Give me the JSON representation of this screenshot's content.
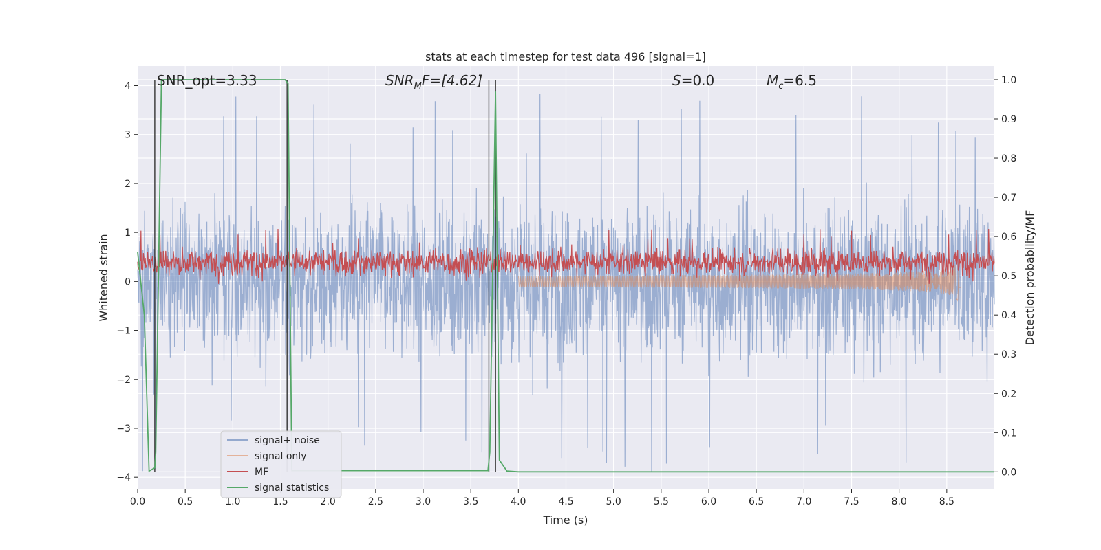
{
  "chart_data": {
    "type": "line",
    "title": "stats at each timestep for test data 496 [signal=1]",
    "xlabel": "Time (s)",
    "ylabel": "Whitened strain",
    "y2label": "Detection probability/MF",
    "xlim": [
      0.0,
      9.0
    ],
    "ylim": [
      -4.25,
      4.4
    ],
    "y2lim": [
      -0.045,
      1.035
    ],
    "xticks": [
      0.0,
      0.5,
      1.0,
      1.5,
      2.0,
      2.5,
      3.0,
      3.5,
      4.0,
      4.5,
      5.0,
      5.5,
      6.0,
      6.5,
      7.0,
      7.5,
      8.0,
      8.5
    ],
    "yticks": [
      -4,
      -3,
      -2,
      -1,
      0,
      1,
      2,
      3,
      4
    ],
    "y2ticks": [
      0.0,
      0.1,
      0.2,
      0.3,
      0.4,
      0.5,
      0.6,
      0.7,
      0.8,
      0.9,
      1.0
    ],
    "ytick_labels": [
      "−4",
      "−3",
      "−2",
      "−1",
      "0",
      "1",
      "2",
      "3",
      "4"
    ],
    "grid": true,
    "legend_position": "lower-left",
    "annotations": [
      {
        "text": "SNR_opt=3.33",
        "x": 0.18,
        "y": 4.1
      },
      {
        "text_main": "SNR",
        "text_sub": "M",
        "text_rest": "F=[4.62]",
        "x": 2.6,
        "y": 4.1
      },
      {
        "text_main": "S",
        "text_sub": "",
        "text_rest": "=0.0",
        "x": 5.6,
        "y": 4.1
      },
      {
        "text_main": "M",
        "text_sub": "c",
        "text_rest": "=6.5",
        "x": 6.6,
        "y": 4.1
      }
    ],
    "series": [
      {
        "name": "signal+ noise",
        "color": "#4c72b0",
        "axis": "left",
        "description_values": "whitened strain noise, amplitude roughly ±2 with peaks to ±4",
        "envelope": {
          "typical": 2.2,
          "max": 4.0
        }
      },
      {
        "name": "signal only",
        "color": "#dd8452",
        "axis": "left",
        "chirp": {
          "start": 4.0,
          "end": 8.65,
          "peak_amp": 0.45
        }
      },
      {
        "name": "MF",
        "color": "#c44e52",
        "axis": "right",
        "band": [
          0.5,
          0.57
        ]
      },
      {
        "name": "signal statistics",
        "color": "#55a868",
        "axis": "right",
        "x": [
          0.0,
          0.07,
          0.12,
          0.18,
          0.19,
          0.25,
          0.3,
          1.5,
          1.55,
          1.58,
          1.62,
          1.65,
          3.5,
          3.68,
          3.7,
          3.76,
          3.8,
          3.88,
          4.0,
          5.0,
          6.0,
          7.0,
          8.0,
          8.5,
          9.0
        ],
        "values": [
          0.56,
          0.4,
          0.002,
          0.01,
          0.05,
          1.0,
          1.0,
          1.0,
          1.0,
          0.99,
          0.003,
          0.003,
          0.003,
          0.003,
          0.05,
          0.97,
          0.03,
          0.002,
          0.0,
          0.0,
          0.0,
          0.0,
          0.0,
          0.0,
          0.0
        ]
      }
    ],
    "markers": [
      0.18,
      1.57,
      3.69,
      3.76
    ]
  }
}
